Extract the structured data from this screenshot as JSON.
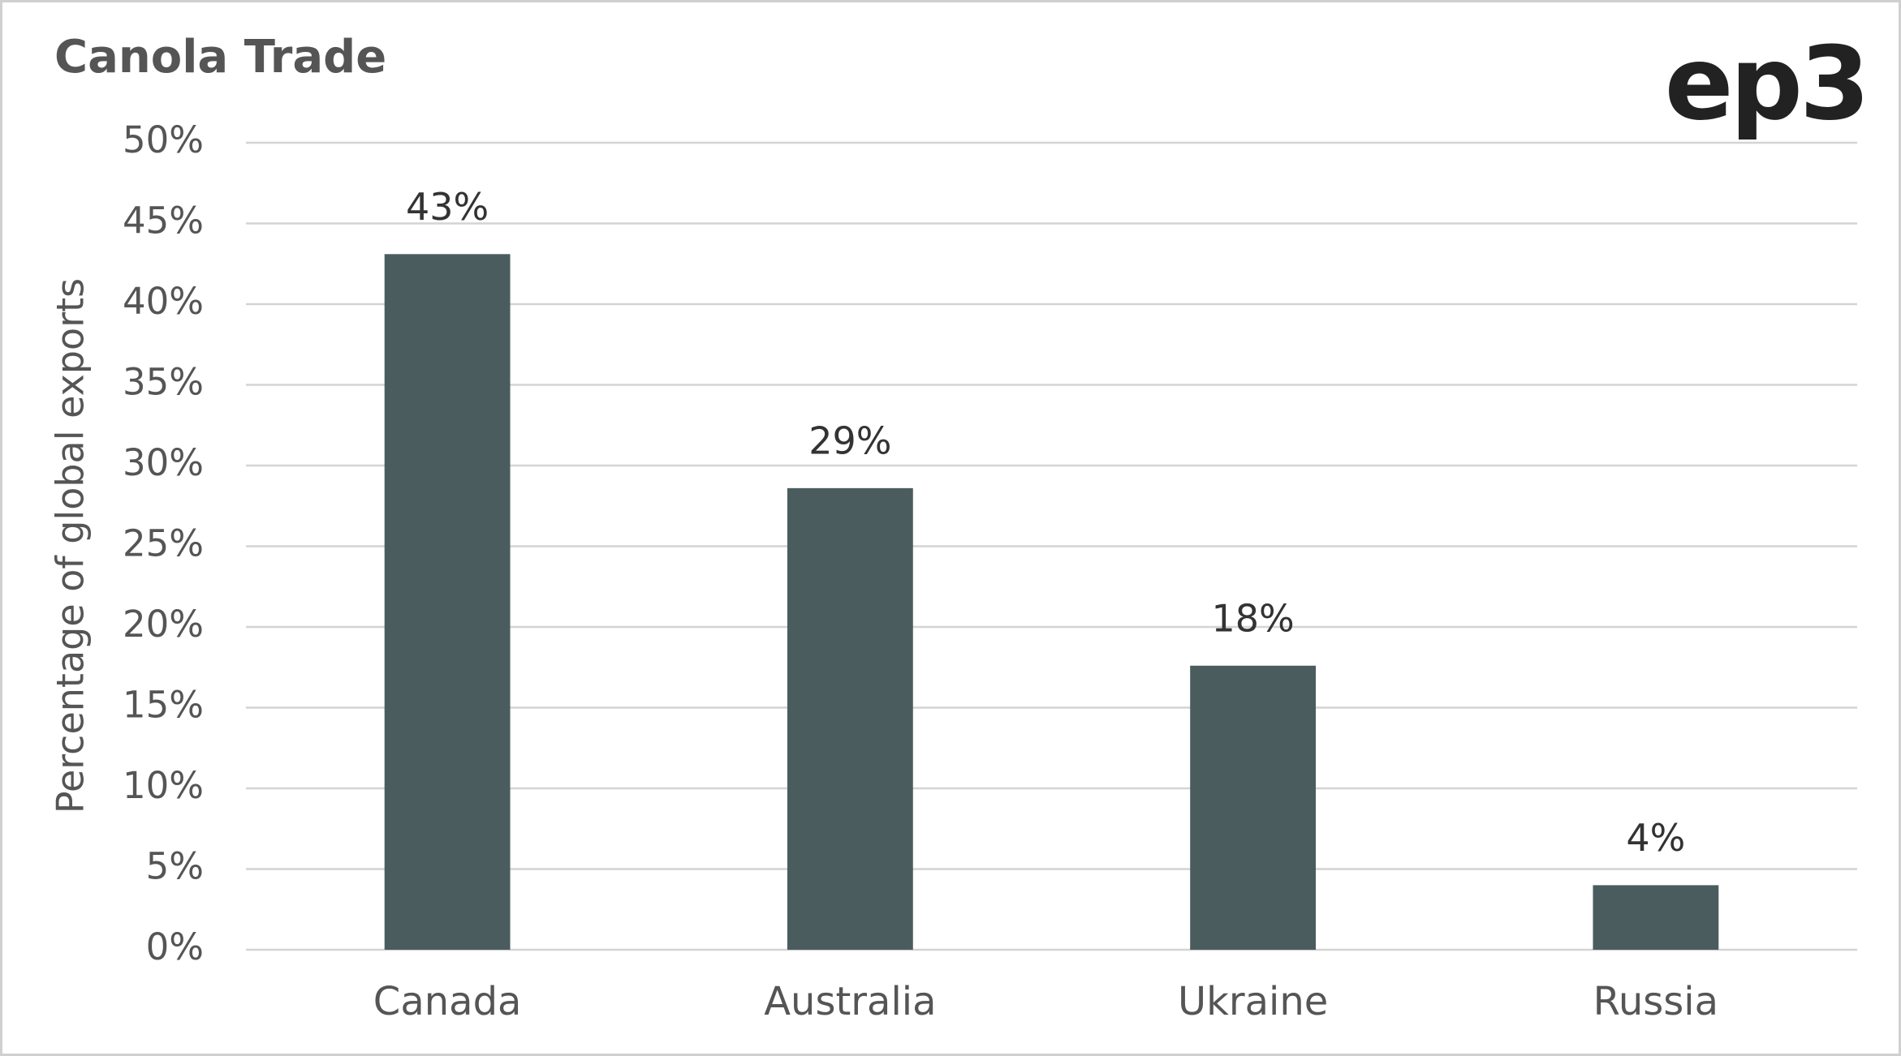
{
  "logo": "ep3",
  "chart_data": {
    "type": "bar",
    "title": "Canola Trade",
    "y_label": "Percentage of global exports",
    "categories": [
      "Canada",
      "Australia",
      "Ukraine",
      "Russia"
    ],
    "values": [
      43.1,
      28.6,
      17.6,
      4.0
    ],
    "value_labels": [
      "43%",
      "29%",
      "18%",
      "4%"
    ],
    "color": "#4a5c5e",
    "ylim": [
      0,
      50
    ],
    "yticks": [
      {
        "value": 0,
        "label": "0%"
      },
      {
        "value": 5,
        "label": "5%"
      },
      {
        "value": 10,
        "label": "10%"
      },
      {
        "value": 15,
        "label": "15%"
      },
      {
        "value": 20,
        "label": "20%"
      },
      {
        "value": 25,
        "label": "25%"
      },
      {
        "value": 30,
        "label": "30%"
      },
      {
        "value": 35,
        "label": "35%"
      },
      {
        "value": 40,
        "label": "40%"
      },
      {
        "value": 45,
        "label": "45%"
      },
      {
        "value": 50,
        "label": "50%"
      }
    ],
    "grid": true
  }
}
